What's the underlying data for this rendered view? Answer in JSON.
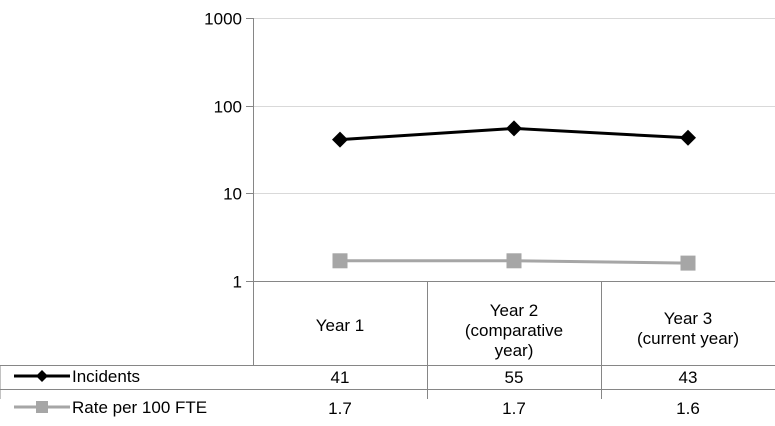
{
  "chart_data": {
    "type": "line",
    "y_scale": "log",
    "ylim": [
      1,
      1000
    ],
    "y_ticks": [
      "1",
      "10",
      "100",
      "1000"
    ],
    "grid": "horizontal",
    "legend_placement": "data table, left",
    "categories": [
      [
        "Year 1"
      ],
      [
        "Year 2",
        "(comparative",
        "year)"
      ],
      [
        "Year 3",
        "(current year)"
      ]
    ],
    "series": [
      {
        "name": "Incidents",
        "values": [
          41,
          55,
          43
        ],
        "value_labels": [
          "41",
          "55",
          "43"
        ],
        "color": "#000000",
        "marker": "diamond"
      },
      {
        "name": "Rate per 100 FTE",
        "values": [
          1.7,
          1.7,
          1.6
        ],
        "value_labels": [
          "1.7",
          "1.7",
          "1.6"
        ],
        "color": "#a6a6a6",
        "marker": "square"
      }
    ]
  }
}
